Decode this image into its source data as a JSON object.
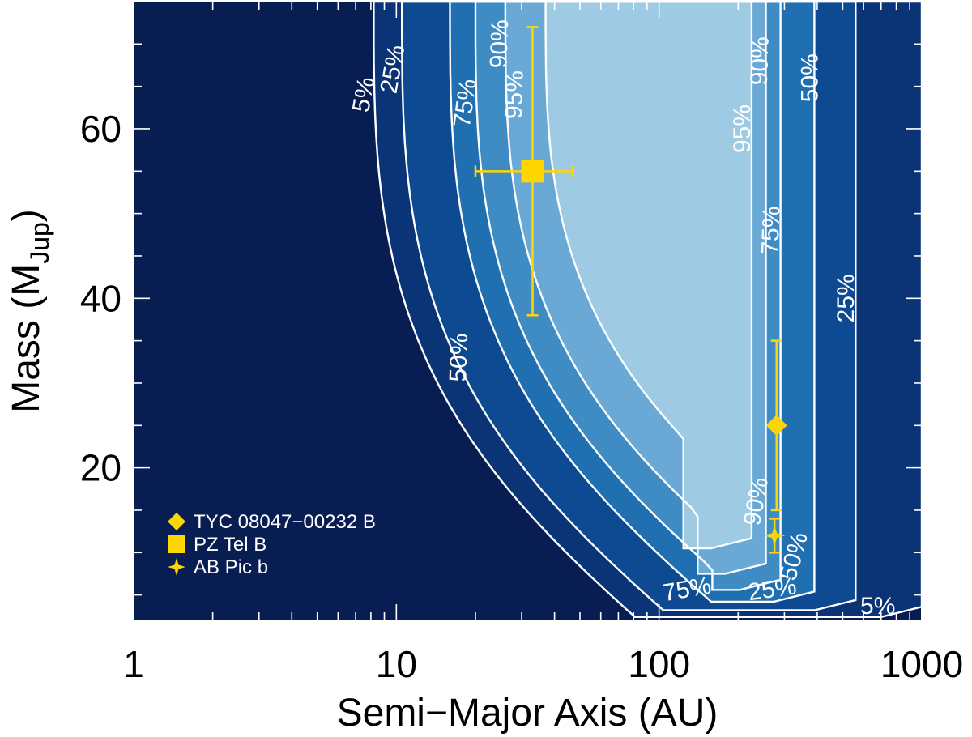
{
  "chart_data": {
    "type": "contour",
    "xlabel": "Semi−Major Axis (AU)",
    "ylabel_main": "Mass (M",
    "ylabel_sub": "Jup",
    "ylabel_close": ")",
    "x_scale": "log",
    "xlim": [
      1,
      1000
    ],
    "ylim": [
      2,
      75
    ],
    "x_ticks": [
      {
        "value": 1,
        "label": "1"
      },
      {
        "value": 10,
        "label": "10"
      },
      {
        "value": 100,
        "label": "100"
      },
      {
        "value": 1000,
        "label": "1000"
      }
    ],
    "y_ticks": [
      {
        "value": 20,
        "label": "20"
      },
      {
        "value": 40,
        "label": "40"
      },
      {
        "value": 60,
        "label": "60"
      }
    ],
    "contour_fill_colors": {
      "background": "#081d52",
      "5": "#0b3477",
      "25": "#0d4a92",
      "50": "#1f6fb1",
      "75": "#3f8bc4",
      "90": "#6aa9d6",
      "95": "#9ecbe3"
    },
    "contours": [
      {
        "level": "5",
        "lower_a": 8.2,
        "upper_a": 1000
      },
      {
        "level": "25",
        "lower_a": 10.5,
        "upper_a": 560
      },
      {
        "level": "50",
        "lower_a": 16,
        "upper_a": 390
      },
      {
        "level": "75",
        "lower_a": 20,
        "upper_a": 290
      },
      {
        "level": "90",
        "lower_a": 26,
        "upper_a": 255
      },
      {
        "level": "95",
        "lower_a": 37,
        "upper_a": 225
      }
    ],
    "contour_labels": [
      {
        "text": "5%",
        "a": 7.6,
        "m": 64,
        "rot": -80
      },
      {
        "text": "25%",
        "a": 9.8,
        "m": 67,
        "rot": -80
      },
      {
        "text": "75%",
        "a": 18.5,
        "m": 63,
        "rot": -82
      },
      {
        "text": "90%",
        "a": 25,
        "m": 70,
        "rot": -88
      },
      {
        "text": "95%",
        "a": 28.5,
        "m": 64,
        "rot": -88
      },
      {
        "text": "50%",
        "a": 17.5,
        "m": 33,
        "rot": -88
      },
      {
        "text": "95%",
        "a": 210,
        "m": 60,
        "rot": -90
      },
      {
        "text": "90%",
        "a": 245,
        "m": 68,
        "rot": -88
      },
      {
        "text": "50%",
        "a": 380,
        "m": 66,
        "rot": -90
      },
      {
        "text": "75%",
        "a": 270,
        "m": 48,
        "rot": -88
      },
      {
        "text": "25%",
        "a": 520,
        "m": 40,
        "rot": -90
      },
      {
        "text": "90%",
        "a": 237,
        "m": 16,
        "rot": -80
      },
      {
        "text": "50%",
        "a": 330,
        "m": 9.5,
        "rot": -75
      },
      {
        "text": "75%",
        "a": 128,
        "m": 5.5,
        "rot": -10
      },
      {
        "text": "25%",
        "a": 270,
        "m": 5.5,
        "rot": -8
      },
      {
        "text": "5%",
        "a": 680,
        "m": 3.5,
        "rot": 0
      }
    ],
    "series": [
      {
        "name": "TYC 08047−00232 B",
        "marker": "diamond",
        "x": 280,
        "y": 25,
        "y_err": [
          15,
          35
        ]
      },
      {
        "name": "PZ Tel B",
        "marker": "square",
        "x": 33,
        "y": 55,
        "x_err": [
          20,
          47
        ],
        "y_err": [
          38,
          72
        ]
      },
      {
        "name": "AB Pic b",
        "marker": "star",
        "x": 275,
        "y": 12,
        "y_err": [
          10,
          14
        ]
      }
    ],
    "marker_color": "#ffd700",
    "legend_position": "bottom-left",
    "grid": false
  }
}
